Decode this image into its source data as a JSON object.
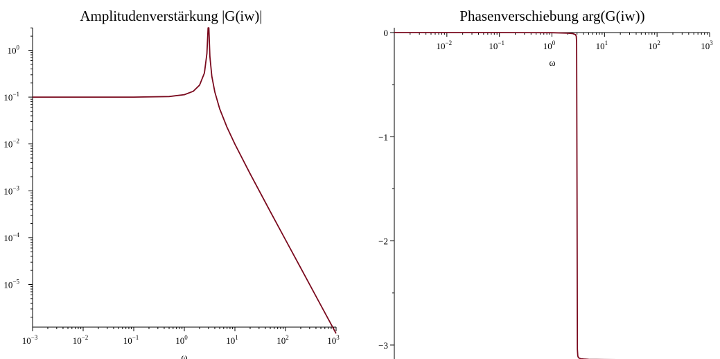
{
  "chart_data": [
    {
      "type": "line",
      "title": "Amplitudenverstärkung |G(iw)|",
      "xlabel": "ω",
      "ylabel": "",
      "xscale": "log",
      "yscale": "log",
      "xlim": [
        0.001,
        1000
      ],
      "ylim": [
        1e-06,
        3.0
      ],
      "color": "#7a0a1e",
      "x_tick_labels": [
        {
          "v": 0.001,
          "base": "10",
          "exp": "−3"
        },
        {
          "v": 0.01,
          "base": "10",
          "exp": "−2"
        },
        {
          "v": 0.1,
          "base": "10",
          "exp": "−1"
        },
        {
          "v": 1,
          "base": "10",
          "exp": "0"
        },
        {
          "v": 10,
          "base": "10",
          "exp": "1"
        },
        {
          "v": 100,
          "base": "10",
          "exp": "2"
        },
        {
          "v": 1000,
          "base": "10",
          "exp": "3"
        }
      ],
      "y_tick_labels": [
        {
          "v": 1,
          "base": "10",
          "exp": "0"
        },
        {
          "v": 0.1,
          "base": "10",
          "exp": "−1"
        },
        {
          "v": 0.01,
          "base": "10",
          "exp": "−2"
        },
        {
          "v": 0.001,
          "base": "10",
          "exp": "−3"
        },
        {
          "v": 0.0001,
          "base": "10",
          "exp": "−4"
        },
        {
          "v": 1e-05,
          "base": "10",
          "exp": "−5"
        }
      ],
      "series": [
        {
          "x": [
            0.001,
            0.01,
            0.1,
            0.5,
            1.0,
            1.5,
            2.0,
            2.5,
            2.8,
            2.95,
            3.0,
            3.05,
            3.2,
            3.5,
            4.0,
            5.0,
            7.0,
            10,
            20,
            50,
            100,
            200,
            500,
            1000
          ],
          "y": [
            0.1,
            0.1,
            0.1001,
            0.1029,
            0.1125,
            0.1333,
            0.18,
            0.327,
            0.859,
            3.0,
            3.0,
            3.0,
            0.726,
            0.277,
            0.1286,
            0.05625,
            0.0225,
            0.00989,
            0.0023,
            0.000361,
            9.01e-05,
            2.25e-05,
            3.6e-06,
            9e-07
          ]
        }
      ]
    },
    {
      "type": "line",
      "title": "Phasenverschiebung arg(G(iw))",
      "xlabel": "ω",
      "ylabel": "",
      "xscale": "log",
      "yscale": "linear",
      "xlim": [
        0.001,
        1000
      ],
      "ylim": [
        -3.14,
        0
      ],
      "color": "#7a0a1e",
      "x_tick_labels": [
        {
          "v": 0.01,
          "base": "10",
          "exp": "−2"
        },
        {
          "v": 0.1,
          "base": "10",
          "exp": "−1"
        },
        {
          "v": 1,
          "base": "10",
          "exp": "0"
        },
        {
          "v": 10,
          "base": "10",
          "exp": "1"
        },
        {
          "v": 100,
          "base": "10",
          "exp": "2"
        },
        {
          "v": 1000,
          "base": "10",
          "exp": "3"
        }
      ],
      "y_tick_labels": [
        {
          "v": 0,
          "label": "0"
        },
        {
          "v": -1,
          "label": "−1"
        },
        {
          "v": -2,
          "label": "−2"
        },
        {
          "v": -3,
          "label": "−3"
        }
      ],
      "series": [
        {
          "x": [
            0.001,
            0.01,
            0.1,
            1.0,
            2.0,
            2.5,
            2.8,
            2.9,
            2.95,
            3.0,
            3.05,
            3.1,
            3.2,
            3.5,
            4.0,
            5.0,
            10,
            20,
            30
          ],
          "y": [
            0,
            0,
            -0.0001,
            -0.0013,
            -0.0055,
            -0.01,
            -0.02,
            -0.035,
            -0.1,
            -1.57,
            -3.04,
            -3.105,
            -3.122,
            -3.131,
            -3.134,
            -3.137,
            -3.139,
            -3.14,
            -3.14
          ]
        }
      ]
    }
  ]
}
